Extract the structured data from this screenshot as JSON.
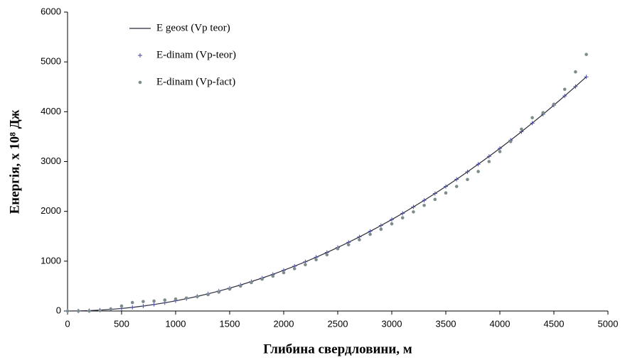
{
  "chart_data": {
    "type": "scatter",
    "x_label": "Глибина свердловини, м",
    "y_label": "Енергія, х 10⁸ Дж",
    "x": [
      0,
      100,
      200,
      300,
      400,
      500,
      600,
      700,
      800,
      900,
      1000,
      1100,
      1200,
      1300,
      1400,
      1500,
      1600,
      1700,
      1800,
      1900,
      2000,
      2100,
      2200,
      2300,
      2400,
      2500,
      2600,
      2700,
      2800,
      2900,
      3000,
      3100,
      3200,
      3300,
      3400,
      3500,
      3600,
      3700,
      3800,
      3900,
      4000,
      4100,
      4200,
      4300,
      4400,
      4500,
      4600,
      4700,
      4800
    ],
    "series": [
      {
        "name": "E geost (Vp teor)",
        "color": "#2b2b3a",
        "marker": "line",
        "values": [
          0,
          2,
          8,
          18,
          33,
          51,
          73,
          100,
          131,
          165,
          204,
          247,
          294,
          345,
          400,
          459,
          522,
          590,
          661,
          736,
          816,
          900,
          987,
          1079,
          1175,
          1275,
          1379,
          1487,
          1599,
          1716,
          1836,
          1960,
          2089,
          2222,
          2358,
          2499,
          2644,
          2793,
          2946,
          3103,
          3264,
          3429,
          3599,
          3772,
          3949,
          4131,
          4317,
          4506,
          4700
        ]
      },
      {
        "name": "E-dinam (Vp-teor)",
        "color": "#4a4aa0",
        "marker": "plus",
        "values": [
          0,
          2,
          8,
          18,
          33,
          51,
          73,
          100,
          131,
          165,
          204,
          247,
          294,
          345,
          400,
          459,
          522,
          590,
          661,
          736,
          816,
          900,
          987,
          1079,
          1175,
          1275,
          1379,
          1487,
          1599,
          1716,
          1836,
          1960,
          2089,
          2222,
          2358,
          2499,
          2644,
          2793,
          2946,
          3103,
          3264,
          3429,
          3599,
          3772,
          3949,
          4131,
          4317,
          4506,
          4700
        ]
      },
      {
        "name": "E-dinam (Vp-fact)",
        "color": "#7f8c8c",
        "marker": "dot",
        "values": [
          0,
          0,
          0,
          10,
          40,
          100,
          170,
          190,
          200,
          220,
          240,
          260,
          290,
          330,
          380,
          440,
          500,
          570,
          640,
          700,
          770,
          850,
          930,
          1030,
          1130,
          1250,
          1330,
          1430,
          1540,
          1640,
          1750,
          1870,
          1990,
          2120,
          2240,
          2370,
          2500,
          2640,
          2800,
          3000,
          3200,
          3400,
          3650,
          3880,
          3980,
          4150,
          4450,
          4800,
          5150
        ]
      }
    ],
    "xlim": [
      0,
      5000
    ],
    "xticks": [
      0,
      500,
      1000,
      1500,
      2000,
      2500,
      3000,
      3500,
      4000,
      4500,
      5000
    ],
    "ylim": [
      0,
      6000
    ],
    "yticks": [
      0,
      1000,
      2000,
      3000,
      4000,
      5000,
      6000
    ],
    "legend": "upper left"
  }
}
